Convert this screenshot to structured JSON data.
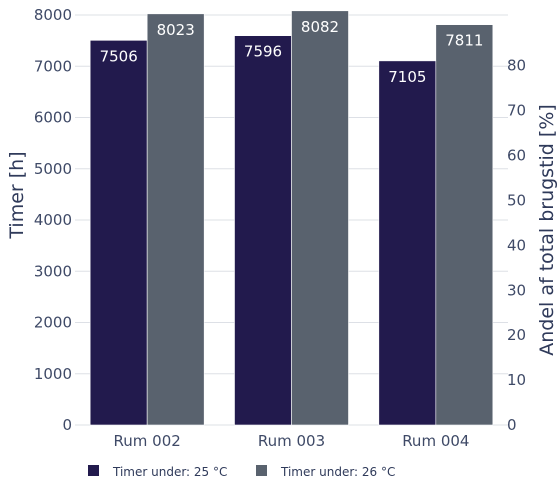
{
  "chart_data": {
    "type": "bar",
    "categories": [
      "Rum 002",
      "Rum 003",
      "Rum 004"
    ],
    "series": [
      {
        "name": "Timer under: 25 °C",
        "values": [
          7506,
          7596,
          7105
        ],
        "color": "#221a4d"
      },
      {
        "name": "Timer under: 26 °C",
        "values": [
          8023,
          8082,
          7811
        ],
        "color": "#59626e"
      }
    ],
    "ylabel": "Timer [h]",
    "ylim": [
      0,
      8000
    ],
    "yticks": [
      0,
      1000,
      2000,
      3000,
      4000,
      5000,
      6000,
      7000,
      8000
    ],
    "y2label": "Andel af total brugstid [%]",
    "y2lim": [
      0,
      91.3
    ],
    "y2ticks": [
      0,
      10,
      20,
      30,
      40,
      50,
      60,
      70,
      80
    ],
    "grid": true,
    "legend_position": "bottom-left",
    "data_labels": true
  }
}
